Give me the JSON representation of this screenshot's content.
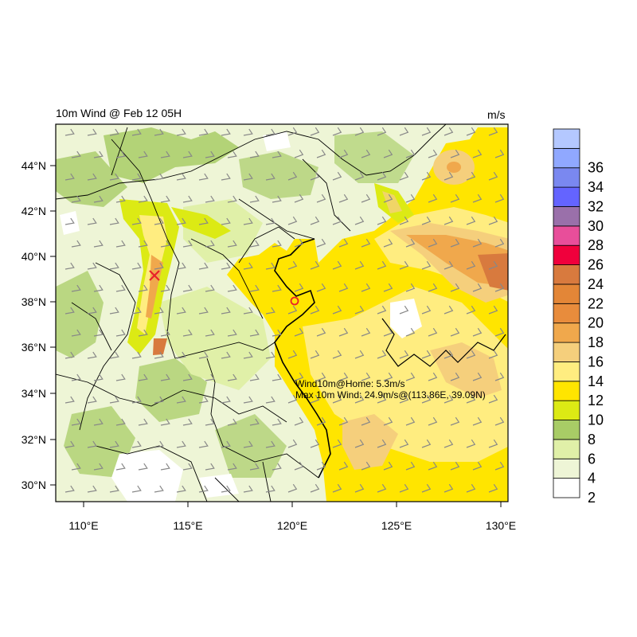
{
  "title": "10m Wind @ Feb 12 05H",
  "units": "m/s",
  "map": {
    "lon_range": [
      108.5,
      130.2
    ],
    "lat_range": [
      29.3,
      45.8
    ],
    "lon_ticks": [
      {
        "value": 110,
        "label": "110°E"
      },
      {
        "value": 115,
        "label": "115°E"
      },
      {
        "value": 120,
        "label": "120°E"
      },
      {
        "value": 125,
        "label": "125°E"
      },
      {
        "value": 130,
        "label": "130°E"
      }
    ],
    "lat_ticks": [
      {
        "value": 30,
        "label": "30°N"
      },
      {
        "value": 32,
        "label": "32°N"
      },
      {
        "value": 34,
        "label": "34°N"
      },
      {
        "value": 36,
        "label": "36°N"
      },
      {
        "value": 38,
        "label": "38°N"
      },
      {
        "value": 40,
        "label": "40°N"
      },
      {
        "value": 42,
        "label": "42°N"
      },
      {
        "value": 44,
        "label": "44°N"
      }
    ]
  },
  "annotations": {
    "home_wind": "Wind10m@Home: 5.3m/s",
    "max_wind": "Max 10m Wind: 24.9m/s@(113.86E, 39.09N)"
  },
  "markers": {
    "home": {
      "lon": 120.2,
      "lat": 38.1,
      "symbol": "circle",
      "color": "#e8202a"
    },
    "max": {
      "lon": 113.6,
      "lat": 39.2,
      "symbol": "x",
      "color": "#e8202a"
    }
  },
  "colorbar": {
    "levels": [
      {
        "label": "2",
        "color": "#ffffff"
      },
      {
        "label": "4",
        "color": "#eef5d6"
      },
      {
        "label": "6",
        "color": "#e0f0a8"
      },
      {
        "label": "8",
        "color": "#a8cc66"
      },
      {
        "label": "10",
        "color": "#dcea14"
      },
      {
        "label": "12",
        "color": "#ffe500"
      },
      {
        "label": "14",
        "color": "#ffed80"
      },
      {
        "label": "16",
        "color": "#f5cf7c"
      },
      {
        "label": "18",
        "color": "#f0a84c"
      },
      {
        "label": "20",
        "color": "#e88c3c"
      },
      {
        "label": "22",
        "color": "#e38637"
      },
      {
        "label": "24",
        "color": "#d87a3e"
      },
      {
        "label": "26",
        "color": "#f0003c"
      },
      {
        "label": "28",
        "color": "#e84e9a"
      },
      {
        "label": "30",
        "color": "#9a70aa"
      },
      {
        "label": "32",
        "color": "#6464ff"
      },
      {
        "label": "34",
        "color": "#7a88f0"
      },
      {
        "label": "36",
        "color": "#90a8ff"
      },
      {
        "label": "",
        "color": "#b4c8ff"
      }
    ]
  }
}
